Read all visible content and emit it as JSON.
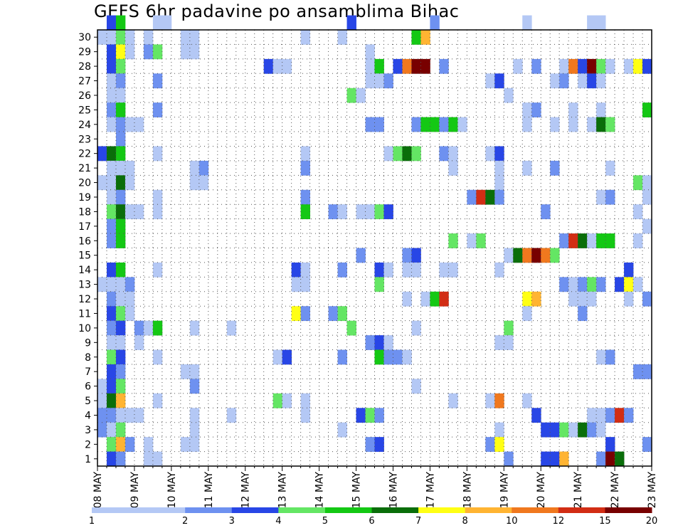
{
  "chart_data": {
    "type": "heatmap",
    "title": "GEFS 6hr padavine po ansamblima Bihac",
    "xlabel": "",
    "ylabel": "",
    "x_ticks": [
      "08 MAY",
      "09 MAY",
      "10 MAY",
      "11 MAY",
      "12 MAY",
      "13 MAY",
      "14 MAY",
      "15 MAY",
      "16 MAY",
      "17 MAY",
      "18 MAY",
      "19 MAY",
      "20 MAY",
      "21 MAY",
      "22 MAY",
      "23 MAY"
    ],
    "y_ticks": [
      "1",
      "2",
      "3",
      "4",
      "5",
      "6",
      "7",
      "8",
      "9",
      "10",
      "11",
      "12",
      "13",
      "14",
      "15",
      "16",
      "17",
      "18",
      "19",
      "20",
      "21",
      "22",
      "23",
      "24",
      "25",
      "26",
      "27",
      "28",
      "29",
      "30"
    ],
    "x_unit": "6-hour step from 08 MAY 00Z",
    "x_range": [
      0,
      60
    ],
    "y_range": [
      0,
      30
    ],
    "legend": {
      "colors": [
        "#b4c8f5",
        "#6e91f0",
        "#2846e6",
        "#64e664",
        "#14c814",
        "#0a6e0a",
        "#ffff14",
        "#ffb432",
        "#f0781e",
        "#d22d14",
        "#780000"
      ],
      "labels": [
        "1",
        "2",
        "3",
        "4",
        "5",
        "6",
        "7",
        "8",
        "10",
        "12",
        "15",
        "20"
      ]
    },
    "grid": true,
    "cells": [
      [
        1,
        30,
        3
      ],
      [
        2,
        30,
        5
      ],
      [
        6,
        30,
        1
      ],
      [
        7,
        30,
        1
      ],
      [
        27,
        30,
        3
      ],
      [
        36,
        30,
        2
      ],
      [
        46,
        30,
        1
      ],
      [
        53,
        30,
        1
      ],
      [
        54,
        30,
        1
      ],
      [
        0,
        29,
        1
      ],
      [
        1,
        29,
        1
      ],
      [
        2,
        29,
        4
      ],
      [
        3,
        29,
        1
      ],
      [
        5,
        29,
        1
      ],
      [
        9,
        29,
        1
      ],
      [
        10,
        29,
        1
      ],
      [
        22,
        29,
        1
      ],
      [
        26,
        29,
        1
      ],
      [
        34,
        29,
        5
      ],
      [
        35,
        29,
        8
      ],
      [
        1,
        28,
        3
      ],
      [
        2,
        28,
        7
      ],
      [
        3,
        28,
        1
      ],
      [
        5,
        28,
        2
      ],
      [
        6,
        28,
        4
      ],
      [
        9,
        28,
        1
      ],
      [
        10,
        28,
        1
      ],
      [
        29,
        28,
        1
      ],
      [
        1,
        27,
        3
      ],
      [
        2,
        27,
        4
      ],
      [
        18,
        27,
        3
      ],
      [
        19,
        27,
        1
      ],
      [
        20,
        27,
        1
      ],
      [
        29,
        27,
        1
      ],
      [
        30,
        27,
        5
      ],
      [
        32,
        27,
        3
      ],
      [
        33,
        27,
        9
      ],
      [
        34,
        27,
        11
      ],
      [
        35,
        27,
        11
      ],
      [
        37,
        27,
        2
      ],
      [
        45,
        27,
        1
      ],
      [
        47,
        27,
        2
      ],
      [
        50,
        27,
        1
      ],
      [
        51,
        27,
        9
      ],
      [
        52,
        27,
        3
      ],
      [
        53,
        27,
        11
      ],
      [
        54,
        27,
        4
      ],
      [
        55,
        27,
        1
      ],
      [
        57,
        27,
        1
      ],
      [
        58,
        27,
        7
      ],
      [
        59,
        27,
        3
      ],
      [
        1,
        26,
        1
      ],
      [
        2,
        26,
        2
      ],
      [
        6,
        26,
        2
      ],
      [
        29,
        26,
        1
      ],
      [
        30,
        26,
        1
      ],
      [
        31,
        26,
        2
      ],
      [
        42,
        26,
        1
      ],
      [
        43,
        26,
        3
      ],
      [
        49,
        26,
        1
      ],
      [
        50,
        26,
        2
      ],
      [
        52,
        26,
        1
      ],
      [
        53,
        26,
        3
      ],
      [
        54,
        26,
        1
      ],
      [
        1,
        25,
        1
      ],
      [
        2,
        25,
        1
      ],
      [
        27,
        25,
        4
      ],
      [
        28,
        25,
        1
      ],
      [
        44,
        25,
        1
      ],
      [
        1,
        24,
        2
      ],
      [
        2,
        24,
        5
      ],
      [
        6,
        24,
        2
      ],
      [
        46,
        24,
        1
      ],
      [
        47,
        24,
        2
      ],
      [
        51,
        24,
        1
      ],
      [
        54,
        24,
        1
      ],
      [
        59,
        24,
        5
      ],
      [
        1,
        23,
        1
      ],
      [
        2,
        23,
        2
      ],
      [
        3,
        23,
        1
      ],
      [
        4,
        23,
        1
      ],
      [
        29,
        23,
        2
      ],
      [
        30,
        23,
        2
      ],
      [
        34,
        23,
        2
      ],
      [
        35,
        23,
        5
      ],
      [
        36,
        23,
        5
      ],
      [
        37,
        23,
        2
      ],
      [
        38,
        23,
        5
      ],
      [
        39,
        23,
        1
      ],
      [
        46,
        23,
        1
      ],
      [
        49,
        23,
        1
      ],
      [
        51,
        23,
        1
      ],
      [
        53,
        23,
        1
      ],
      [
        54,
        23,
        6
      ],
      [
        55,
        23,
        4
      ],
      [
        2,
        22,
        2
      ],
      [
        0,
        21,
        3
      ],
      [
        1,
        21,
        6
      ],
      [
        2,
        21,
        5
      ],
      [
        6,
        21,
        1
      ],
      [
        22,
        21,
        1
      ],
      [
        31,
        21,
        1
      ],
      [
        32,
        21,
        4
      ],
      [
        33,
        21,
        6
      ],
      [
        34,
        21,
        4
      ],
      [
        37,
        21,
        2
      ],
      [
        38,
        21,
        1
      ],
      [
        42,
        21,
        1
      ],
      [
        43,
        21,
        3
      ],
      [
        1,
        20,
        1
      ],
      [
        2,
        20,
        1
      ],
      [
        3,
        20,
        1
      ],
      [
        10,
        20,
        1
      ],
      [
        11,
        20,
        2
      ],
      [
        22,
        20,
        2
      ],
      [
        38,
        20,
        1
      ],
      [
        43,
        20,
        1
      ],
      [
        46,
        20,
        1
      ],
      [
        49,
        20,
        2
      ],
      [
        55,
        20,
        1
      ],
      [
        0,
        19,
        1
      ],
      [
        1,
        19,
        1
      ],
      [
        2,
        19,
        6
      ],
      [
        3,
        19,
        1
      ],
      [
        10,
        19,
        1
      ],
      [
        11,
        19,
        1
      ],
      [
        43,
        19,
        1
      ],
      [
        58,
        19,
        4
      ],
      [
        59,
        19,
        1
      ],
      [
        1,
        18,
        1
      ],
      [
        2,
        18,
        2
      ],
      [
        6,
        18,
        1
      ],
      [
        22,
        18,
        2
      ],
      [
        40,
        18,
        2
      ],
      [
        41,
        18,
        10
      ],
      [
        42,
        18,
        6
      ],
      [
        43,
        18,
        2
      ],
      [
        54,
        18,
        1
      ],
      [
        55,
        18,
        2
      ],
      [
        59,
        18,
        1
      ],
      [
        1,
        17,
        4
      ],
      [
        2,
        17,
        6
      ],
      [
        3,
        17,
        1
      ],
      [
        4,
        17,
        1
      ],
      [
        6,
        17,
        1
      ],
      [
        22,
        17,
        5
      ],
      [
        25,
        17,
        2
      ],
      [
        26,
        17,
        1
      ],
      [
        28,
        17,
        1
      ],
      [
        29,
        17,
        1
      ],
      [
        30,
        17,
        4
      ],
      [
        31,
        17,
        3
      ],
      [
        48,
        17,
        2
      ],
      [
        58,
        17,
        1
      ],
      [
        1,
        16,
        2
      ],
      [
        2,
        16,
        5
      ],
      [
        59,
        16,
        1
      ],
      [
        1,
        15,
        2
      ],
      [
        2,
        15,
        5
      ],
      [
        38,
        15,
        4
      ],
      [
        40,
        15,
        1
      ],
      [
        41,
        15,
        4
      ],
      [
        50,
        15,
        2
      ],
      [
        51,
        15,
        10
      ],
      [
        52,
        15,
        6
      ],
      [
        53,
        15,
        1
      ],
      [
        54,
        15,
        5
      ],
      [
        55,
        15,
        5
      ],
      [
        58,
        15,
        1
      ],
      [
        28,
        14,
        2
      ],
      [
        33,
        14,
        2
      ],
      [
        34,
        14,
        3
      ],
      [
        44,
        14,
        1
      ],
      [
        45,
        14,
        6
      ],
      [
        46,
        14,
        9
      ],
      [
        47,
        14,
        11
      ],
      [
        48,
        14,
        9
      ],
      [
        49,
        14,
        4
      ],
      [
        1,
        13,
        3
      ],
      [
        2,
        13,
        5
      ],
      [
        6,
        13,
        1
      ],
      [
        21,
        13,
        3
      ],
      [
        22,
        13,
        1
      ],
      [
        26,
        13,
        2
      ],
      [
        30,
        13,
        3
      ],
      [
        31,
        13,
        1
      ],
      [
        33,
        13,
        1
      ],
      [
        34,
        13,
        1
      ],
      [
        37,
        13,
        1
      ],
      [
        38,
        13,
        1
      ],
      [
        43,
        13,
        1
      ],
      [
        57,
        13,
        3
      ],
      [
        0,
        12,
        1
      ],
      [
        1,
        12,
        1
      ],
      [
        2,
        12,
        1
      ],
      [
        3,
        12,
        2
      ],
      [
        21,
        12,
        1
      ],
      [
        22,
        12,
        1
      ],
      [
        30,
        12,
        4
      ],
      [
        50,
        12,
        2
      ],
      [
        51,
        12,
        1
      ],
      [
        52,
        12,
        2
      ],
      [
        53,
        12,
        4
      ],
      [
        54,
        12,
        2
      ],
      [
        56,
        12,
        3
      ],
      [
        57,
        12,
        7
      ],
      [
        58,
        12,
        1
      ],
      [
        1,
        11,
        2
      ],
      [
        2,
        11,
        1
      ],
      [
        3,
        11,
        1
      ],
      [
        33,
        11,
        1
      ],
      [
        35,
        11,
        1
      ],
      [
        36,
        11,
        5
      ],
      [
        37,
        11,
        10
      ],
      [
        46,
        11,
        7
      ],
      [
        47,
        11,
        8
      ],
      [
        51,
        11,
        1
      ],
      [
        52,
        11,
        1
      ],
      [
        53,
        11,
        1
      ],
      [
        57,
        11,
        1
      ],
      [
        59,
        11,
        2
      ],
      [
        1,
        10,
        3
      ],
      [
        2,
        10,
        4
      ],
      [
        3,
        10,
        1
      ],
      [
        21,
        10,
        7
      ],
      [
        22,
        10,
        2
      ],
      [
        25,
        10,
        2
      ],
      [
        26,
        10,
        4
      ],
      [
        46,
        10,
        1
      ],
      [
        52,
        10,
        2
      ],
      [
        1,
        9,
        2
      ],
      [
        2,
        9,
        3
      ],
      [
        4,
        9,
        2
      ],
      [
        5,
        9,
        1
      ],
      [
        6,
        9,
        5
      ],
      [
        10,
        9,
        1
      ],
      [
        14,
        9,
        1
      ],
      [
        27,
        9,
        4
      ],
      [
        34,
        9,
        1
      ],
      [
        44,
        9,
        4
      ],
      [
        1,
        8,
        1
      ],
      [
        2,
        8,
        1
      ],
      [
        4,
        8,
        1
      ],
      [
        29,
        8,
        2
      ],
      [
        30,
        8,
        3
      ],
      [
        31,
        8,
        1
      ],
      [
        43,
        8,
        1
      ],
      [
        44,
        8,
        1
      ],
      [
        1,
        7,
        4
      ],
      [
        2,
        7,
        3
      ],
      [
        6,
        7,
        1
      ],
      [
        19,
        7,
        1
      ],
      [
        20,
        7,
        3
      ],
      [
        26,
        7,
        2
      ],
      [
        30,
        7,
        5
      ],
      [
        31,
        7,
        2
      ],
      [
        32,
        7,
        2
      ],
      [
        33,
        7,
        1
      ],
      [
        54,
        7,
        1
      ],
      [
        55,
        7,
        2
      ],
      [
        1,
        6,
        3
      ],
      [
        2,
        6,
        2
      ],
      [
        9,
        6,
        1
      ],
      [
        10,
        6,
        1
      ],
      [
        58,
        6,
        2
      ],
      [
        59,
        6,
        2
      ],
      [
        0,
        5,
        1
      ],
      [
        1,
        5,
        3
      ],
      [
        2,
        5,
        4
      ],
      [
        10,
        5,
        2
      ],
      [
        34,
        5,
        1
      ],
      [
        0,
        4,
        1
      ],
      [
        1,
        4,
        6
      ],
      [
        2,
        4,
        8
      ],
      [
        6,
        4,
        1
      ],
      [
        19,
        4,
        4
      ],
      [
        20,
        4,
        1
      ],
      [
        22,
        4,
        1
      ],
      [
        38,
        4,
        1
      ],
      [
        42,
        4,
        1
      ],
      [
        43,
        4,
        9
      ],
      [
        46,
        4,
        1
      ],
      [
        0,
        3,
        2
      ],
      [
        1,
        3,
        2
      ],
      [
        2,
        3,
        1
      ],
      [
        3,
        3,
        1
      ],
      [
        4,
        3,
        1
      ],
      [
        10,
        3,
        1
      ],
      [
        14,
        3,
        1
      ],
      [
        22,
        3,
        1
      ],
      [
        28,
        3,
        3
      ],
      [
        29,
        3,
        4
      ],
      [
        30,
        3,
        2
      ],
      [
        47,
        3,
        3
      ],
      [
        53,
        3,
        1
      ],
      [
        54,
        3,
        1
      ],
      [
        55,
        3,
        2
      ],
      [
        56,
        3,
        10
      ],
      [
        57,
        3,
        2
      ],
      [
        0,
        2,
        2
      ],
      [
        1,
        2,
        1
      ],
      [
        2,
        2,
        4
      ],
      [
        10,
        2,
        1
      ],
      [
        26,
        2,
        1
      ],
      [
        43,
        2,
        1
      ],
      [
        48,
        2,
        3
      ],
      [
        49,
        2,
        3
      ],
      [
        50,
        2,
        4
      ],
      [
        51,
        2,
        1
      ],
      [
        52,
        2,
        6
      ],
      [
        53,
        2,
        2
      ],
      [
        54,
        2,
        1
      ],
      [
        1,
        1,
        4
      ],
      [
        2,
        1,
        8
      ],
      [
        3,
        1,
        2
      ],
      [
        5,
        1,
        1
      ],
      [
        9,
        1,
        1
      ],
      [
        10,
        1,
        1
      ],
      [
        29,
        1,
        2
      ],
      [
        30,
        1,
        3
      ],
      [
        42,
        1,
        2
      ],
      [
        43,
        1,
        7
      ],
      [
        55,
        1,
        3
      ],
      [
        59,
        1,
        2
      ],
      [
        1,
        0,
        3
      ],
      [
        2,
        0,
        2
      ],
      [
        5,
        0,
        1
      ],
      [
        6,
        0,
        1
      ],
      [
        44,
        0,
        2
      ],
      [
        48,
        0,
        3
      ],
      [
        49,
        0,
        3
      ],
      [
        50,
        0,
        8
      ],
      [
        54,
        0,
        2
      ],
      [
        55,
        0,
        11
      ],
      [
        56,
        0,
        6
      ]
    ]
  }
}
